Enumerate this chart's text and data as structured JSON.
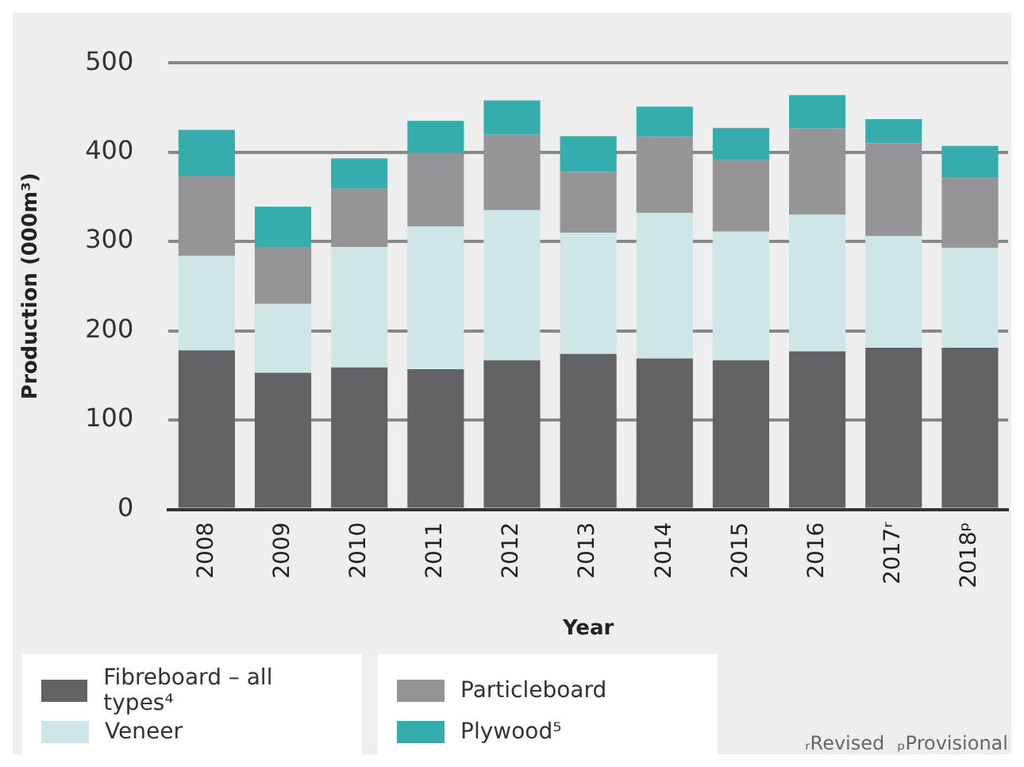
{
  "chart_data": {
    "type": "bar",
    "stacked": true,
    "xlabel": "Year",
    "ylabel": "Production (000m³)",
    "categories": [
      "2008",
      "2009",
      "2010",
      "2011",
      "2012",
      "2013",
      "2014",
      "2015",
      "2016",
      "2017ʳ",
      "2018ᵖ"
    ],
    "series": [
      {
        "name": "Fibreboard – all types⁴",
        "color": "#636365",
        "values": [
          178,
          153,
          159,
          157,
          167,
          174,
          169,
          167,
          177,
          181,
          181
        ]
      },
      {
        "name": "Veneer",
        "color": "#cfe6e6",
        "values": [
          106,
          77,
          135,
          160,
          168,
          136,
          163,
          144,
          153,
          125,
          112
        ]
      },
      {
        "name": "Particleboard",
        "color": "#959598",
        "values": [
          89,
          64,
          65,
          82,
          85,
          68,
          85,
          80,
          97,
          104,
          78
        ]
      },
      {
        "name": "Plywood⁵",
        "color": "#35adad",
        "values": [
          52,
          45,
          34,
          36,
          38,
          40,
          34,
          36,
          37,
          27,
          36
        ]
      }
    ],
    "ylim": [
      0,
      500
    ],
    "yticks": [
      0,
      100,
      200,
      300,
      400,
      500
    ],
    "grid": "y",
    "legend": "bottom left",
    "annotations": [
      "ᵣRevised",
      "ₚProvisional"
    ]
  }
}
